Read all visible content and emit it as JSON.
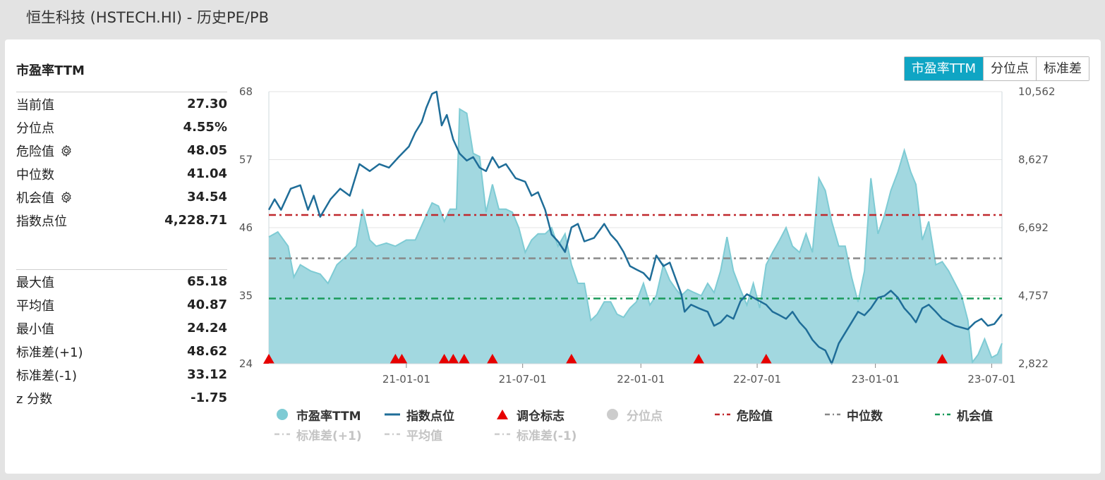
{
  "header": {
    "title": "恒生科技 (HSTECH.HI) - 历史PE/PB"
  },
  "sidebar": {
    "title": "市盈率TTM",
    "group1": [
      {
        "label": "当前值",
        "value": "27.30",
        "gear": false
      },
      {
        "label": "分位点",
        "value": "4.55%",
        "gear": false
      },
      {
        "label": "危险值",
        "value": "48.05",
        "gear": true
      },
      {
        "label": "中位数",
        "value": "41.04",
        "gear": false
      },
      {
        "label": "机会值",
        "value": "34.54",
        "gear": true
      },
      {
        "label": "指数点位",
        "value": "4,228.71",
        "gear": false
      }
    ],
    "group2": [
      {
        "label": "最大值",
        "value": "65.18"
      },
      {
        "label": "平均值",
        "value": "40.87"
      },
      {
        "label": "最小值",
        "value": "24.24"
      },
      {
        "label": "标准差(+1)",
        "value": "48.62"
      },
      {
        "label": "标准差(-1)",
        "value": "33.12"
      },
      {
        "label": "z 分数",
        "value": "-1.75"
      }
    ]
  },
  "toggle": {
    "options": [
      "市盈率TTM",
      "分位点",
      "标准差"
    ],
    "active": 0
  },
  "legend": {
    "row1": [
      {
        "label": "市盈率TTM",
        "symbol": "dot",
        "color": "#7ecbd4",
        "active": true
      },
      {
        "label": "指数点位",
        "symbol": "line",
        "color": "#1f6d98",
        "active": true
      },
      {
        "label": "调仓标志",
        "symbol": "triangle",
        "color": "#e60000",
        "active": true
      },
      {
        "label": "分位点",
        "symbol": "dot",
        "color": "#c8c8c8",
        "active": false
      },
      {
        "label": "危险值",
        "symbol": "dashdot",
        "color": "#c0282d",
        "active": true
      },
      {
        "label": "中位数",
        "symbol": "dashdot",
        "color": "#888888",
        "active": true
      },
      {
        "label": "机会值",
        "symbol": "dashdot",
        "color": "#1a9a5a",
        "active": true
      }
    ],
    "row2": [
      {
        "label": "标准差(+1)",
        "symbol": "dashdot",
        "color": "#cccccc",
        "active": false
      },
      {
        "label": "平均值",
        "symbol": "dashdot",
        "color": "#cccccc",
        "active": false
      },
      {
        "label": "标准差(-1)",
        "symbol": "dashdot",
        "color": "#cccccc",
        "active": false
      }
    ]
  },
  "colors": {
    "pe_fill": "#9dd6de",
    "pe_line": "#7ecbd4",
    "index_line": "#1f6d98",
    "danger": "#c0282d",
    "median": "#888888",
    "opportunity": "#1a9a5a",
    "marker": "#e60000",
    "accent": "#0fa5c4"
  },
  "chart_data": {
    "type": "line",
    "title": "市盈率TTM",
    "y_left": {
      "ticks": [
        24,
        35,
        46,
        57,
        68
      ],
      "labels": [
        "24",
        "35",
        "46",
        "57",
        "68"
      ],
      "range": [
        24,
        68
      ]
    },
    "y_right": {
      "ticks": [
        2822,
        4757,
        6692,
        8627,
        10562
      ],
      "labels": [
        "2,822",
        "4,757",
        "6,692",
        "8,627",
        "10,562"
      ],
      "range": [
        2822,
        10562
      ]
    },
    "x_range": [
      "2020-06-01",
      "2023-07-17"
    ],
    "x_ticks": [
      {
        "date": "2021-01-01",
        "label": "21-01-01"
      },
      {
        "date": "2021-07-01",
        "label": "21-07-01"
      },
      {
        "date": "2022-01-01",
        "label": "22-01-01"
      },
      {
        "date": "2022-07-01",
        "label": "22-07-01"
      },
      {
        "date": "2023-01-01",
        "label": "23-01-01"
      },
      {
        "date": "2023-07-01",
        "label": "23-07-01"
      }
    ],
    "reference_lines": [
      {
        "name": "危险值",
        "value": 48.05
      },
      {
        "name": "中位数",
        "value": 41.04
      },
      {
        "name": "机会值",
        "value": 34.54
      }
    ],
    "series": [
      {
        "name": "市盈率TTM",
        "axis": "left",
        "type": "area",
        "points": [
          [
            "2020-06-01",
            44.5
          ],
          [
            "2020-06-15",
            45.3
          ],
          [
            "2020-07-01",
            43.0
          ],
          [
            "2020-07-10",
            38.0
          ],
          [
            "2020-07-20",
            40.0
          ],
          [
            "2020-08-05",
            39.0
          ],
          [
            "2020-08-20",
            38.5
          ],
          [
            "2020-09-01",
            37.0
          ],
          [
            "2020-09-15",
            40.0
          ],
          [
            "2020-10-01",
            41.5
          ],
          [
            "2020-10-15",
            43.0
          ],
          [
            "2020-10-25",
            49.0
          ],
          [
            "2020-11-05",
            44.0
          ],
          [
            "2020-11-15",
            43.0
          ],
          [
            "2020-12-01",
            43.5
          ],
          [
            "2020-12-15",
            43.0
          ],
          [
            "2021-01-01",
            44.0
          ],
          [
            "2021-01-15",
            44.0
          ],
          [
            "2021-02-01",
            48.0
          ],
          [
            "2021-02-10",
            50.0
          ],
          [
            "2021-02-20",
            49.5
          ],
          [
            "2021-03-01",
            47.0
          ],
          [
            "2021-03-10",
            49.0
          ],
          [
            "2021-03-20",
            49.0
          ],
          [
            "2021-03-25",
            65.18
          ],
          [
            "2021-04-05",
            64.5
          ],
          [
            "2021-04-15",
            58.0
          ],
          [
            "2021-04-25",
            57.5
          ],
          [
            "2021-05-05",
            48.5
          ],
          [
            "2021-05-15",
            53.0
          ],
          [
            "2021-05-25",
            49.0
          ],
          [
            "2021-06-05",
            49.0
          ],
          [
            "2021-06-15",
            48.5
          ],
          [
            "2021-06-25",
            46.0
          ],
          [
            "2021-07-05",
            42.0
          ],
          [
            "2021-07-15",
            44.0
          ],
          [
            "2021-07-25",
            45.0
          ],
          [
            "2021-08-05",
            45.0
          ],
          [
            "2021-08-15",
            46.0
          ],
          [
            "2021-08-25",
            43.0
          ],
          [
            "2021-09-05",
            45.0
          ],
          [
            "2021-09-15",
            40.0
          ],
          [
            "2021-09-25",
            37.0
          ],
          [
            "2021-10-05",
            37.0
          ],
          [
            "2021-10-15",
            31.0
          ],
          [
            "2021-10-25",
            32.0
          ],
          [
            "2021-11-05",
            34.0
          ],
          [
            "2021-11-15",
            34.0
          ],
          [
            "2021-11-25",
            32.0
          ],
          [
            "2021-12-05",
            31.5
          ],
          [
            "2021-12-15",
            33.0
          ],
          [
            "2021-12-25",
            34.0
          ],
          [
            "2022-01-05",
            37.0
          ],
          [
            "2022-01-15",
            33.5
          ],
          [
            "2022-01-25",
            35.0
          ],
          [
            "2022-02-05",
            40.0
          ],
          [
            "2022-02-15",
            37.5
          ],
          [
            "2022-02-25",
            36.0
          ],
          [
            "2022-03-05",
            35.0
          ],
          [
            "2022-03-15",
            36.0
          ],
          [
            "2022-03-25",
            35.5
          ],
          [
            "2022-04-05",
            35.0
          ],
          [
            "2022-04-15",
            37.0
          ],
          [
            "2022-04-25",
            35.5
          ],
          [
            "2022-05-05",
            39.0
          ],
          [
            "2022-05-15",
            44.5
          ],
          [
            "2022-05-25",
            39.0
          ],
          [
            "2022-06-05",
            36.0
          ],
          [
            "2022-06-15",
            33.5
          ],
          [
            "2022-06-25",
            37.0
          ],
          [
            "2022-07-05",
            33.0
          ],
          [
            "2022-07-15",
            40.0
          ],
          [
            "2022-07-25",
            42.0
          ],
          [
            "2022-08-05",
            44.0
          ],
          [
            "2022-08-15",
            46.0
          ],
          [
            "2022-08-25",
            43.0
          ],
          [
            "2022-09-05",
            42.0
          ],
          [
            "2022-09-15",
            45.0
          ],
          [
            "2022-09-25",
            42.0
          ],
          [
            "2022-10-05",
            54.0
          ],
          [
            "2022-10-15",
            52.0
          ],
          [
            "2022-10-25",
            47.0
          ],
          [
            "2022-11-05",
            43.0
          ],
          [
            "2022-11-15",
            43.0
          ],
          [
            "2022-11-25",
            38.0
          ],
          [
            "2022-12-05",
            34.0
          ],
          [
            "2022-12-15",
            39.0
          ],
          [
            "2022-12-25",
            54.0
          ],
          [
            "2023-01-05",
            45.0
          ],
          [
            "2023-01-15",
            48.0
          ],
          [
            "2023-01-25",
            52.0
          ],
          [
            "2023-02-05",
            55.0
          ],
          [
            "2023-02-15",
            58.5
          ],
          [
            "2023-02-25",
            55.0
          ],
          [
            "2023-03-05",
            53.0
          ],
          [
            "2023-03-15",
            44.0
          ],
          [
            "2023-03-25",
            47.0
          ],
          [
            "2023-04-05",
            40.0
          ],
          [
            "2023-04-15",
            40.5
          ],
          [
            "2023-04-25",
            39.0
          ],
          [
            "2023-05-05",
            37.0
          ],
          [
            "2023-05-15",
            35.0
          ],
          [
            "2023-05-25",
            31.0
          ],
          [
            "2023-06-01",
            24.24
          ],
          [
            "2023-06-10",
            25.5
          ],
          [
            "2023-06-20",
            28.0
          ],
          [
            "2023-07-01",
            25.0
          ],
          [
            "2023-07-10",
            25.5
          ],
          [
            "2023-07-17",
            27.3
          ]
        ]
      },
      {
        "name": "指数点位",
        "axis": "right",
        "type": "line",
        "points": [
          [
            "2020-06-01",
            7200
          ],
          [
            "2020-06-10",
            7500
          ],
          [
            "2020-06-20",
            7200
          ],
          [
            "2020-07-05",
            7800
          ],
          [
            "2020-07-20",
            7900
          ],
          [
            "2020-08-01",
            7200
          ],
          [
            "2020-08-10",
            7600
          ],
          [
            "2020-08-20",
            7000
          ],
          [
            "2020-09-05",
            7500
          ],
          [
            "2020-09-20",
            7800
          ],
          [
            "2020-10-05",
            7600
          ],
          [
            "2020-10-20",
            8500
          ],
          [
            "2020-11-05",
            8300
          ],
          [
            "2020-11-20",
            8500
          ],
          [
            "2020-12-05",
            8400
          ],
          [
            "2020-12-20",
            8700
          ],
          [
            "2021-01-05",
            9000
          ],
          [
            "2021-01-15",
            9400
          ],
          [
            "2021-01-25",
            9700
          ],
          [
            "2021-02-01",
            10100
          ],
          [
            "2021-02-10",
            10500
          ],
          [
            "2021-02-17",
            10562
          ],
          [
            "2021-02-25",
            9600
          ],
          [
            "2021-03-05",
            9900
          ],
          [
            "2021-03-15",
            9200
          ],
          [
            "2021-03-25",
            8800
          ],
          [
            "2021-04-05",
            8600
          ],
          [
            "2021-04-15",
            8700
          ],
          [
            "2021-04-25",
            8400
          ],
          [
            "2021-05-05",
            8300
          ],
          [
            "2021-05-15",
            8700
          ],
          [
            "2021-05-25",
            8400
          ],
          [
            "2021-06-05",
            8500
          ],
          [
            "2021-06-20",
            8100
          ],
          [
            "2021-07-05",
            8000
          ],
          [
            "2021-07-15",
            7600
          ],
          [
            "2021-07-25",
            7700
          ],
          [
            "2021-08-05",
            7200
          ],
          [
            "2021-08-15",
            6500
          ],
          [
            "2021-08-25",
            6300
          ],
          [
            "2021-09-05",
            6000
          ],
          [
            "2021-09-15",
            6700
          ],
          [
            "2021-09-25",
            6800
          ],
          [
            "2021-10-05",
            6300
          ],
          [
            "2021-10-20",
            6400
          ],
          [
            "2021-11-05",
            6800
          ],
          [
            "2021-11-15",
            6500
          ],
          [
            "2021-11-25",
            6300
          ],
          [
            "2021-12-05",
            6000
          ],
          [
            "2021-12-15",
            5600
          ],
          [
            "2021-12-25",
            5500
          ],
          [
            "2022-01-05",
            5400
          ],
          [
            "2022-01-15",
            5200
          ],
          [
            "2022-01-25",
            5900
          ],
          [
            "2022-02-05",
            5600
          ],
          [
            "2022-02-15",
            5700
          ],
          [
            "2022-02-25",
            5200
          ],
          [
            "2022-03-05",
            4800
          ],
          [
            "2022-03-10",
            4300
          ],
          [
            "2022-03-20",
            4500
          ],
          [
            "2022-04-01",
            4400
          ],
          [
            "2022-04-15",
            4300
          ],
          [
            "2022-04-25",
            3900
          ],
          [
            "2022-05-05",
            4000
          ],
          [
            "2022-05-15",
            4200
          ],
          [
            "2022-05-25",
            4100
          ],
          [
            "2022-06-05",
            4600
          ],
          [
            "2022-06-15",
            4800
          ],
          [
            "2022-06-25",
            4700
          ],
          [
            "2022-07-05",
            4600
          ],
          [
            "2022-07-15",
            4500
          ],
          [
            "2022-07-25",
            4300
          ],
          [
            "2022-08-05",
            4200
          ],
          [
            "2022-08-15",
            4100
          ],
          [
            "2022-08-25",
            4300
          ],
          [
            "2022-09-05",
            4000
          ],
          [
            "2022-09-15",
            3800
          ],
          [
            "2022-09-25",
            3500
          ],
          [
            "2022-10-05",
            3300
          ],
          [
            "2022-10-15",
            3200
          ],
          [
            "2022-10-25",
            2822
          ],
          [
            "2022-11-05",
            3400
          ],
          [
            "2022-11-15",
            3700
          ],
          [
            "2022-11-25",
            4000
          ],
          [
            "2022-12-05",
            4300
          ],
          [
            "2022-12-15",
            4200
          ],
          [
            "2022-12-25",
            4400
          ],
          [
            "2023-01-05",
            4700
          ],
          [
            "2023-01-15",
            4750
          ],
          [
            "2023-01-25",
            4900
          ],
          [
            "2023-02-05",
            4700
          ],
          [
            "2023-02-15",
            4400
          ],
          [
            "2023-02-25",
            4200
          ],
          [
            "2023-03-05",
            4000
          ],
          [
            "2023-03-15",
            4400
          ],
          [
            "2023-03-25",
            4500
          ],
          [
            "2023-04-05",
            4300
          ],
          [
            "2023-04-15",
            4100
          ],
          [
            "2023-04-25",
            4000
          ],
          [
            "2023-05-05",
            3900
          ],
          [
            "2023-05-15",
            3850
          ],
          [
            "2023-05-25",
            3800
          ],
          [
            "2023-06-05",
            4000
          ],
          [
            "2023-06-15",
            4100
          ],
          [
            "2023-06-25",
            3900
          ],
          [
            "2023-07-05",
            3950
          ],
          [
            "2023-07-17",
            4228.71
          ]
        ]
      },
      {
        "name": "调仓标志",
        "axis": "x",
        "type": "marker",
        "dates": [
          "2020-06-01",
          "2020-12-15",
          "2020-12-25",
          "2021-03-01",
          "2021-03-15",
          "2021-04-01",
          "2021-05-15",
          "2021-09-15",
          "2022-04-01",
          "2022-07-15",
          "2023-04-15"
        ]
      }
    ]
  }
}
